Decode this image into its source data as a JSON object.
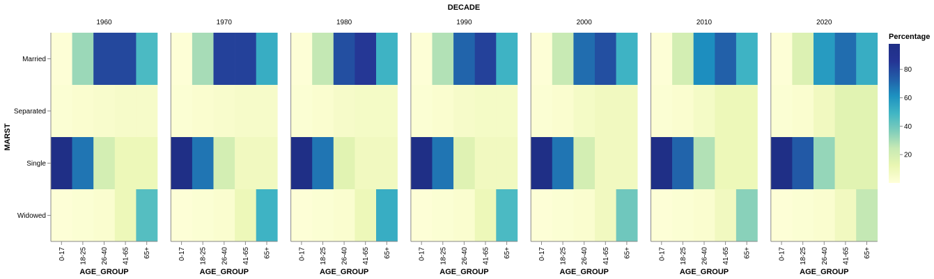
{
  "chart_data": {
    "type": "heatmap",
    "facet_title": "DECADE",
    "facets": [
      "1960",
      "1970",
      "1980",
      "1990",
      "2000",
      "2010",
      "2020"
    ],
    "xlabel": "AGE_GROUP",
    "ylabel": "MARST",
    "x_categories": [
      "0-17",
      "18-25",
      "26-40",
      "41-65",
      "65+"
    ],
    "y_categories": [
      "Married",
      "Separated",
      "Single",
      "Widowed"
    ],
    "values": {
      "1960": [
        [
          1,
          32,
          80,
          80,
          47
        ],
        [
          2,
          3,
          4,
          5,
          5
        ],
        [
          98,
          68,
          20,
          10,
          10
        ],
        [
          1,
          2,
          3,
          10,
          45
        ]
      ],
      "1970": [
        [
          1,
          30,
          82,
          82,
          52
        ],
        [
          2,
          3,
          4,
          5,
          5
        ],
        [
          98,
          68,
          20,
          8,
          8
        ],
        [
          1,
          2,
          3,
          10,
          50
        ]
      ],
      "1980": [
        [
          1,
          25,
          78,
          85,
          50
        ],
        [
          2,
          3,
          5,
          6,
          6
        ],
        [
          98,
          68,
          15,
          8,
          8
        ],
        [
          1,
          2,
          3,
          10,
          52
        ]
      ],
      "1990": [
        [
          1,
          28,
          72,
          82,
          50
        ],
        [
          2,
          3,
          5,
          6,
          6
        ],
        [
          98,
          68,
          16,
          8,
          8
        ],
        [
          1,
          2,
          3,
          10,
          47
        ]
      ],
      "2000": [
        [
          1,
          24,
          70,
          78,
          50
        ],
        [
          2,
          3,
          6,
          8,
          8
        ],
        [
          98,
          68,
          20,
          8,
          8
        ],
        [
          1,
          2,
          3,
          8,
          40
        ]
      ],
      "2010": [
        [
          1,
          20,
          62,
          73,
          50
        ],
        [
          2,
          3,
          6,
          10,
          10
        ],
        [
          98,
          72,
          28,
          10,
          10
        ],
        [
          1,
          2,
          3,
          8,
          35
        ]
      ],
      "2020": [
        [
          1,
          17,
          58,
          70,
          52
        ],
        [
          2,
          3,
          8,
          15,
          15
        ],
        [
          98,
          75,
          33,
          15,
          15
        ],
        [
          1,
          2,
          3,
          8,
          25
        ]
      ]
    },
    "legend": {
      "title": "Percentage",
      "ticks": [
        20,
        40,
        60,
        80
      ],
      "domain": [
        0,
        98
      ],
      "placement": "right"
    },
    "color_scheme": "yellowgreenblue",
    "color_stops": [
      "#ffffd9",
      "#e9f6b2",
      "#c7e9b4",
      "#7fcdbb",
      "#41b6c4",
      "#1d91c0",
      "#225ea8",
      "#253494",
      "#1f2f86"
    ]
  }
}
